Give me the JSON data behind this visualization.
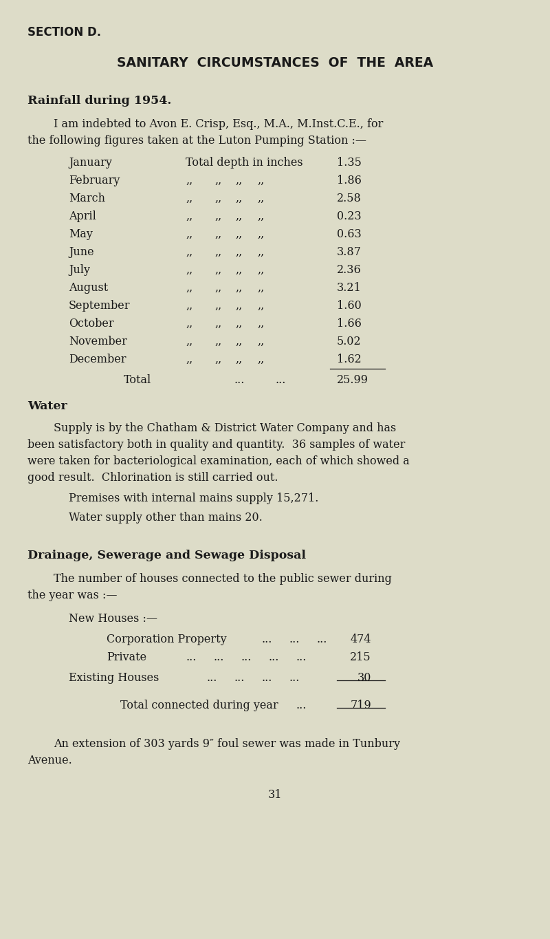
{
  "bg_color": "#dddcc8",
  "text_color": "#1a1a1a",
  "page_width": 8.0,
  "page_height": 13.65,
  "section_header": "SECTION D.",
  "main_title": "SANITARY  CIRCUMSTANCES  OF  THE  AREA",
  "rainfall_heading": "Rainfall during 1954.",
  "rainfall_intro_1": "I am indebted to Avon E. Crisp, Esq., M.A., M.Inst.C.E., for",
  "rainfall_intro_2": "the following figures taken at the Luton Pumping Station :—",
  "months": [
    "January",
    "February",
    "March",
    "April",
    "May",
    "June",
    "July",
    "August",
    "September",
    "October",
    "November",
    "December"
  ],
  "values": [
    "1.35",
    "1.86",
    "2.58",
    "0.23",
    "0.63",
    "3.87",
    "2.36",
    "3.21",
    "1.60",
    "1.66",
    "5.02",
    "1.62"
  ],
  "total_value": "25.99",
  "water_heading": "Water",
  "water_para_1": "Supply is by the Chatham & District Water Company and has",
  "water_para_2": "been satisfactory both in quality and quantity.  36 samples of water",
  "water_para_3": "were taken for bacteriological examination, each of which showed a",
  "water_para_4": "good result.  Chlorination is still carried out.",
  "premises_line": "Premises with internal mains supply 15,271.",
  "water_other_line": "Water supply other than mains 20.",
  "drainage_heading": "Drainage, Sewerage and Sewage Disposal",
  "drainage_intro_1": "The number of houses connected to the public sewer during",
  "drainage_intro_2": "the year was :—",
  "new_houses_label": "New Houses :—",
  "corp_value": "474",
  "private_value": "215",
  "existing_value": "30",
  "total_connected_value": "719",
  "extension_para_1": "An extension of 303 yards 9″ foul sewer was made in Tunbury",
  "extension_para_2": "Avenue.",
  "page_number": "31"
}
